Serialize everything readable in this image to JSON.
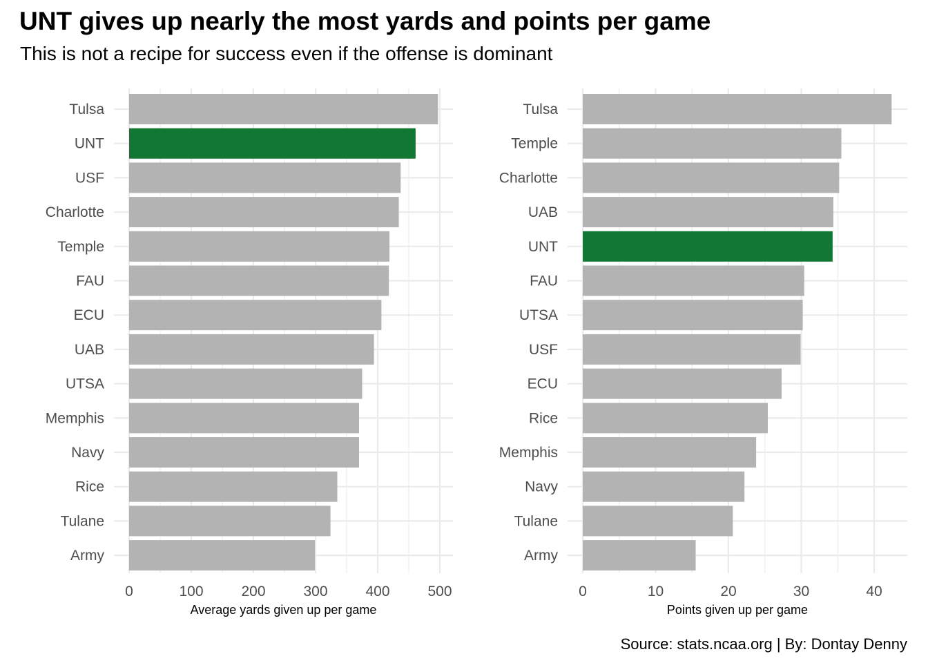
{
  "title": "UNT gives up nearly the most yards and points per game",
  "subtitle": "This is not a recipe for success even if the offense is dominant",
  "caption": "Source: stats.ncaa.org | By: Dontay Denny",
  "colors": {
    "bar": "#b3b3b3",
    "highlight": "#117733",
    "grid": "#ebebeb"
  },
  "chart_data": [
    {
      "type": "bar",
      "orientation": "horizontal",
      "xlabel": "Average yards given up per game",
      "ylabel": "",
      "xlim": [
        0,
        500
      ],
      "xticks": [
        0,
        100,
        200,
        300,
        400,
        500
      ],
      "grid": true,
      "highlight": "UNT",
      "categories": [
        "Tulsa",
        "UNT",
        "USF",
        "Charlotte",
        "Temple",
        "FAU",
        "ECU",
        "UAB",
        "UTSA",
        "Memphis",
        "Navy",
        "Rice",
        "Tulane",
        "Army"
      ],
      "values": [
        497,
        461,
        437,
        434,
        419,
        418,
        406,
        394,
        375,
        370,
        370,
        335,
        324,
        299
      ]
    },
    {
      "type": "bar",
      "orientation": "horizontal",
      "xlabel": "Points given up per game",
      "ylabel": "",
      "xlim": [
        0,
        40
      ],
      "xticks": [
        0,
        10,
        20,
        30,
        40
      ],
      "grid": true,
      "highlight": "UNT",
      "categories": [
        "Tulsa",
        "Temple",
        "Charlotte",
        "UAB",
        "UNT",
        "FAU",
        "UTSA",
        "USF",
        "ECU",
        "Rice",
        "Memphis",
        "Navy",
        "Tulane",
        "Army"
      ],
      "values": [
        42.4,
        35.5,
        35.2,
        34.4,
        34.3,
        30.4,
        30.2,
        29.9,
        27.3,
        25.4,
        23.8,
        22.2,
        20.6,
        15.5
      ]
    }
  ]
}
